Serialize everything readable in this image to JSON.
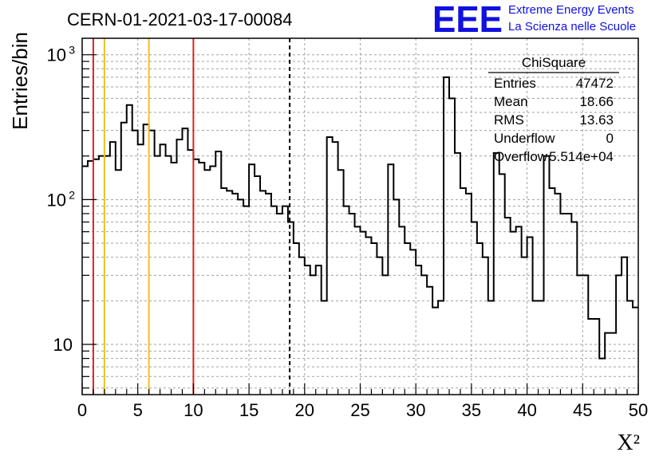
{
  "header": {
    "run_title": "CERN-01-2021-03-17-00084",
    "logo_mark": "EEE",
    "logo_line1": "Extreme Energy Events",
    "logo_line2": "La Scienza nelle Scuole"
  },
  "stats_box": {
    "title": "ChiSquare",
    "rows": [
      {
        "label": "Entries",
        "value": "47472"
      },
      {
        "label": "Mean",
        "value": "18.66"
      },
      {
        "label": "RMS",
        "value": "13.63"
      },
      {
        "label": "Underflow",
        "value": "0"
      },
      {
        "label": "Overflow",
        "value": "5.514e+04"
      }
    ]
  },
  "chart_data": {
    "type": "histogram",
    "title": "",
    "xlabel": "X²",
    "ylabel": "Entries/bin",
    "xlim": [
      0,
      50
    ],
    "ylim": [
      4.5,
      1300
    ],
    "yscale": "log",
    "grid": true,
    "x_ticks": [
      0,
      5,
      10,
      15,
      20,
      25,
      30,
      35,
      40,
      45,
      50
    ],
    "y_tick_labels": [
      {
        "value": 10,
        "label": "10"
      },
      {
        "value": 100,
        "label": "10²"
      },
      {
        "value": 1000,
        "label": "10³"
      }
    ],
    "bin_width": 0.5,
    "series": [
      {
        "bin_start": 0,
        "values": [
          170,
          185,
          190,
          200,
          200,
          250,
          160,
          340,
          450,
          300,
          240,
          330,
          300,
          200,
          240,
          200,
          180,
          260,
          310,
          220,
          190,
          180,
          160,
          170,
          215,
          120,
          115,
          110,
          100,
          90,
          175,
          145,
          115,
          110,
          90,
          80,
          90,
          70,
          50,
          40,
          35,
          30,
          35,
          20,
          270,
          250,
          160,
          90,
          80,
          65,
          60,
          55,
          50,
          40,
          30,
          175,
          100,
          65,
          50,
          45,
          35,
          30,
          25,
          18,
          20,
          700,
          500,
          210,
          120,
          110,
          70,
          50,
          40,
          20,
          210,
          150,
          75,
          60,
          65,
          40,
          55,
          20,
          20,
          200,
          120,
          110,
          80,
          80,
          70,
          30,
          30,
          15,
          15,
          8,
          12,
          12,
          30,
          40,
          20,
          18
        ]
      }
    ],
    "reference_lines": [
      {
        "x": 1,
        "color": "#e02020",
        "style": "solid"
      },
      {
        "x": 2,
        "color": "#f0c020",
        "style": "solid"
      },
      {
        "x": 6,
        "color": "#f0c020",
        "style": "solid"
      },
      {
        "x": 10,
        "color": "#e02020",
        "style": "solid"
      },
      {
        "x": 18.66,
        "color": "#000000",
        "style": "dashed"
      }
    ]
  }
}
